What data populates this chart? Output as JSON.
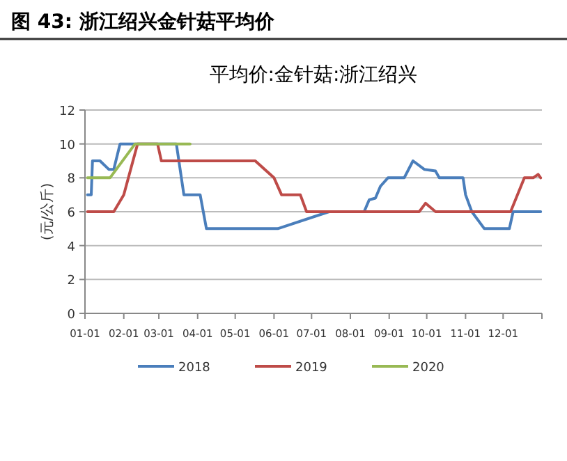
{
  "chart_data": {
    "type": "line",
    "title": "图 43: 浙江绍兴金针菇平均价",
    "subtitle": "平均价:金针菇:浙江绍兴",
    "ylabel": "(元/公斤)",
    "xlim": [
      "--01-01",
      "--12-31"
    ],
    "xticks": [
      {
        "value": "--01-01",
        "label": "01-01"
      },
      {
        "value": "--02-01",
        "label": "02-01"
      },
      {
        "value": "--03-01",
        "label": "03-01"
      },
      {
        "value": "--04-01",
        "label": "04-01"
      },
      {
        "value": "--05-01",
        "label": "05-01"
      },
      {
        "value": "--06-01",
        "label": "06-01"
      },
      {
        "value": "--07-01",
        "label": "07-01"
      },
      {
        "value": "--08-01",
        "label": "08-01"
      },
      {
        "value": "--09-01",
        "label": "09-01"
      },
      {
        "value": "--10-01",
        "label": "10-01"
      },
      {
        "value": "--11-01",
        "label": "11-01"
      },
      {
        "value": "--12-01",
        "label": "12-01"
      },
      {
        "value": "--12-31",
        "label": null
      }
    ],
    "ylim": [
      0,
      12
    ],
    "yticks": [
      0,
      2,
      4,
      6,
      8,
      10,
      12
    ],
    "grid": "y",
    "legend": "bottom",
    "series": [
      {
        "name": "2018",
        "color": "#4a7ebb",
        "x": [
          "--01-03",
          "--01-06",
          "--01-07",
          "--01-13",
          "--01-20",
          "--01-24",
          "--01-29",
          "--03-15",
          "--03-21",
          "--04-03",
          "--04-08",
          "--06-04",
          "--07-15",
          "--08-12",
          "--08-16",
          "--08-21",
          "--08-25",
          "--08-31",
          "--09-13",
          "--09-20",
          "--09-29",
          "--10-08",
          "--10-11",
          "--10-30",
          "--11-01",
          "--11-06",
          "--11-16",
          "--12-06",
          "--12-09",
          "--12-31"
        ],
        "values": [
          7,
          7,
          9,
          9,
          8.5,
          8.5,
          10,
          10,
          7,
          7,
          5,
          5,
          6,
          6,
          6.7,
          6.8,
          7.5,
          8,
          8,
          9,
          8.5,
          8.4,
          8,
          8,
          7,
          6,
          5,
          5,
          6,
          6
        ]
      },
      {
        "name": "2019",
        "color": "#be4b48",
        "x": [
          "--01-03",
          "--01-24",
          "--02-01",
          "--02-12",
          "--02-28",
          "--03-03",
          "--05-17",
          "--06-01",
          "--06-07",
          "--06-22",
          "--06-27",
          "--09-25",
          "--09-30",
          "--10-08",
          "--12-07",
          "--12-18",
          "--12-25",
          "--12-29",
          "--12-31"
        ],
        "values": [
          6,
          6,
          7,
          10,
          10,
          9,
          9,
          8,
          7,
          7,
          6,
          6,
          6.5,
          6,
          6,
          8,
          8,
          8.2,
          8
        ]
      },
      {
        "name": "2020",
        "color": "#98b954",
        "x": [
          "--01-03",
          "--01-21",
          "--02-10",
          "--03-26"
        ],
        "values": [
          8,
          8,
          10,
          10
        ]
      }
    ]
  }
}
